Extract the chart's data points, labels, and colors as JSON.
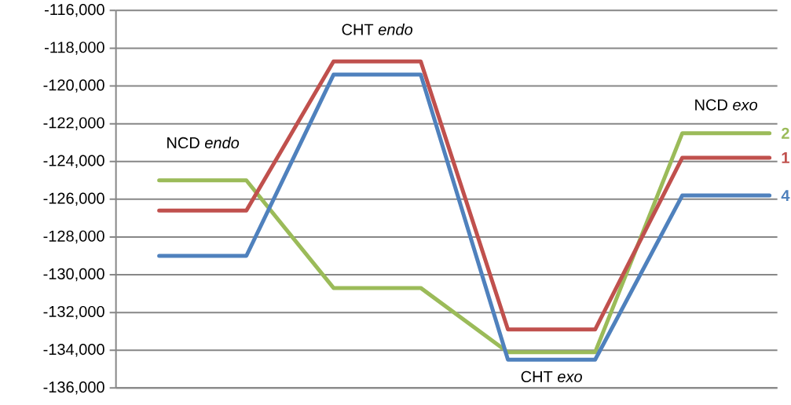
{
  "chart_data": {
    "type": "line",
    "categories": [
      null,
      null,
      null,
      null,
      null,
      null,
      null,
      null
    ],
    "series": [
      {
        "name": "2",
        "color": "#9bbb59",
        "values": [
          -125000,
          -125000,
          -130700,
          -130700,
          -134100,
          -134100,
          -122500,
          -122500
        ]
      },
      {
        "name": "1",
        "color": "#c0504d",
        "values": [
          -126600,
          -126600,
          -118700,
          -118700,
          -132900,
          -132900,
          -123800,
          -123800
        ]
      },
      {
        "name": "4",
        "color": "#4f81bd",
        "values": [
          -129000,
          -129000,
          -119400,
          -119400,
          -134500,
          -134500,
          -125800,
          -125800
        ]
      }
    ],
    "ylim": [
      -136000,
      -116000
    ],
    "yticks": [
      {
        "value": -136000,
        "label": "-136,000"
      },
      {
        "value": -134000,
        "label": "-134,000"
      },
      {
        "value": -132000,
        "label": "-132,000"
      },
      {
        "value": -130000,
        "label": "-130,000"
      },
      {
        "value": -128000,
        "label": "-128,000"
      },
      {
        "value": -126000,
        "label": "-126,000"
      },
      {
        "value": -124000,
        "label": "-124,000"
      },
      {
        "value": -122000,
        "label": "-122,000"
      },
      {
        "value": -120000,
        "label": "-120,000"
      },
      {
        "value": -118000,
        "label": "-118,000"
      },
      {
        "value": -116000,
        "label": "-116,000"
      }
    ],
    "annotations": [
      "NCD *endo*",
      "CHT *endo*",
      "CHT *exo*",
      "NCD *exo*"
    ],
    "grid": "y",
    "tick_labels": "y",
    "marker": "none",
    "line_style": "solid"
  }
}
